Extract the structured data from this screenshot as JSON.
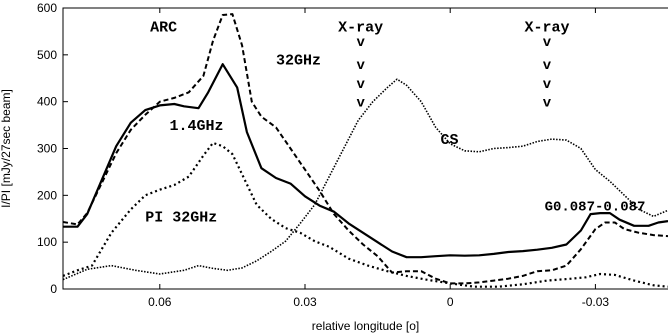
{
  "chart_data": {
    "type": "line",
    "xlabel": "relative longitude [o]",
    "ylabel": "I/PI [mJy/27sec beam]",
    "xlim": [
      0.08,
      -0.045
    ],
    "ylim": [
      0,
      600
    ],
    "xticks": [
      {
        "value": 0.06,
        "label": "0.06"
      },
      {
        "value": 0.03,
        "label": "0.03"
      },
      {
        "value": 0.0,
        "label": "0"
      },
      {
        "value": -0.03,
        "label": "-0.03"
      }
    ],
    "yticks": [
      {
        "value": 0,
        "label": "0"
      },
      {
        "value": 100,
        "label": "100"
      },
      {
        "value": 200,
        "label": "200"
      },
      {
        "value": 300,
        "label": "300"
      },
      {
        "value": 400,
        "label": "400"
      },
      {
        "value": 500,
        "label": "500"
      },
      {
        "value": 600,
        "label": "600"
      }
    ],
    "grid": false,
    "series": [
      {
        "name": "1.4GHz",
        "style": "solid",
        "points": [
          [
            0.08,
            133
          ],
          [
            0.077,
            133
          ],
          [
            0.075,
            160
          ],
          [
            0.069,
            305
          ],
          [
            0.066,
            355
          ],
          [
            0.063,
            382
          ],
          [
            0.06,
            392
          ],
          [
            0.057,
            395
          ],
          [
            0.055,
            390
          ],
          [
            0.052,
            386
          ],
          [
            0.05,
            420
          ],
          [
            0.047,
            480
          ],
          [
            0.044,
            430
          ],
          [
            0.042,
            335
          ],
          [
            0.039,
            258
          ],
          [
            0.036,
            237
          ],
          [
            0.033,
            225
          ],
          [
            0.03,
            198
          ],
          [
            0.027,
            178
          ],
          [
            0.024,
            165
          ],
          [
            0.021,
            140
          ],
          [
            0.018,
            120
          ],
          [
            0.015,
            100
          ],
          [
            0.012,
            80
          ],
          [
            0.009,
            68
          ],
          [
            0.006,
            68
          ],
          [
            0.003,
            70
          ],
          [
            0.0,
            72
          ],
          [
            -0.003,
            71
          ],
          [
            -0.006,
            72
          ],
          [
            -0.009,
            75
          ],
          [
            -0.012,
            79
          ],
          [
            -0.015,
            81
          ],
          [
            -0.018,
            84
          ],
          [
            -0.021,
            88
          ],
          [
            -0.024,
            95
          ],
          [
            -0.027,
            125
          ],
          [
            -0.029,
            160
          ],
          [
            -0.031,
            162
          ],
          [
            -0.033,
            162
          ],
          [
            -0.035,
            148
          ],
          [
            -0.038,
            135
          ],
          [
            -0.041,
            135
          ],
          [
            -0.043,
            142
          ],
          [
            -0.045,
            145
          ]
        ]
      },
      {
        "name": "32GHz",
        "style": "dashed",
        "points": [
          [
            0.08,
            143
          ],
          [
            0.077,
            138
          ],
          [
            0.075,
            162
          ],
          [
            0.069,
            290
          ],
          [
            0.066,
            340
          ],
          [
            0.063,
            372
          ],
          [
            0.06,
            400
          ],
          [
            0.057,
            408
          ],
          [
            0.054,
            420
          ],
          [
            0.051,
            455
          ],
          [
            0.049,
            530
          ],
          [
            0.047,
            585
          ],
          [
            0.045,
            587
          ],
          [
            0.043,
            520
          ],
          [
            0.041,
            400
          ],
          [
            0.039,
            368
          ],
          [
            0.036,
            345
          ],
          [
            0.033,
            300
          ],
          [
            0.03,
            255
          ],
          [
            0.027,
            210
          ],
          [
            0.024,
            160
          ],
          [
            0.021,
            125
          ],
          [
            0.018,
            95
          ],
          [
            0.015,
            70
          ],
          [
            0.012,
            35
          ],
          [
            0.009,
            38
          ],
          [
            0.006,
            38
          ],
          [
            0.003,
            22
          ],
          [
            0.0,
            12
          ],
          [
            -0.003,
            12
          ],
          [
            -0.006,
            14
          ],
          [
            -0.009,
            18
          ],
          [
            -0.012,
            22
          ],
          [
            -0.015,
            28
          ],
          [
            -0.018,
            38
          ],
          [
            -0.021,
            40
          ],
          [
            -0.024,
            50
          ],
          [
            -0.027,
            85
          ],
          [
            -0.03,
            128
          ],
          [
            -0.032,
            142
          ],
          [
            -0.034,
            142
          ],
          [
            -0.036,
            128
          ],
          [
            -0.039,
            120
          ],
          [
            -0.042,
            115
          ],
          [
            -0.045,
            113
          ]
        ]
      },
      {
        "name": "PI 32GHz",
        "style": "dotted",
        "points": [
          [
            0.08,
            28
          ],
          [
            0.077,
            40
          ],
          [
            0.074,
            50
          ],
          [
            0.07,
            120
          ],
          [
            0.066,
            170
          ],
          [
            0.063,
            200
          ],
          [
            0.06,
            212
          ],
          [
            0.057,
            222
          ],
          [
            0.054,
            240
          ],
          [
            0.051,
            285
          ],
          [
            0.049,
            312
          ],
          [
            0.047,
            305
          ],
          [
            0.045,
            288
          ],
          [
            0.043,
            245
          ],
          [
            0.04,
            180
          ],
          [
            0.037,
            150
          ],
          [
            0.034,
            130
          ],
          [
            0.031,
            120
          ],
          [
            0.028,
            102
          ],
          [
            0.025,
            90
          ],
          [
            0.021,
            65
          ],
          [
            0.017,
            50
          ],
          [
            0.013,
            38
          ],
          [
            0.009,
            28
          ],
          [
            0.005,
            20
          ],
          [
            0.0,
            12
          ],
          [
            -0.005,
            5
          ],
          [
            -0.01,
            5
          ],
          [
            -0.015,
            10
          ],
          [
            -0.02,
            18
          ],
          [
            -0.025,
            22
          ],
          [
            -0.028,
            25
          ],
          [
            -0.031,
            32
          ],
          [
            -0.034,
            30
          ],
          [
            -0.038,
            18
          ],
          [
            -0.042,
            8
          ],
          [
            -0.045,
            5
          ]
        ]
      },
      {
        "name": "CS",
        "style": "dense-dotted",
        "points": [
          [
            0.08,
            20
          ],
          [
            0.075,
            42
          ],
          [
            0.07,
            50
          ],
          [
            0.065,
            40
          ],
          [
            0.06,
            32
          ],
          [
            0.055,
            40
          ],
          [
            0.052,
            50
          ],
          [
            0.049,
            44
          ],
          [
            0.046,
            40
          ],
          [
            0.043,
            45
          ],
          [
            0.04,
            60
          ],
          [
            0.037,
            80
          ],
          [
            0.034,
            102
          ],
          [
            0.031,
            140
          ],
          [
            0.028,
            180
          ],
          [
            0.025,
            240
          ],
          [
            0.022,
            300
          ],
          [
            0.019,
            360
          ],
          [
            0.016,
            400
          ],
          [
            0.013,
            430
          ],
          [
            0.011,
            448
          ],
          [
            0.009,
            435
          ],
          [
            0.006,
            400
          ],
          [
            0.003,
            345
          ],
          [
            0.0,
            310
          ],
          [
            -0.003,
            295
          ],
          [
            -0.006,
            293
          ],
          [
            -0.009,
            300
          ],
          [
            -0.012,
            302
          ],
          [
            -0.015,
            305
          ],
          [
            -0.018,
            315
          ],
          [
            -0.021,
            320
          ],
          [
            -0.024,
            318
          ],
          [
            -0.027,
            300
          ],
          [
            -0.03,
            255
          ],
          [
            -0.033,
            230
          ],
          [
            -0.036,
            200
          ],
          [
            -0.039,
            170
          ],
          [
            -0.042,
            155
          ],
          [
            -0.045,
            168
          ]
        ]
      }
    ],
    "annotations": [
      {
        "text": "ARC",
        "x": 0.062,
        "y": 560
      },
      {
        "text": "32GHz",
        "x": 0.036,
        "y": 490
      },
      {
        "text": "1.4GHz",
        "x": 0.058,
        "y": 350
      },
      {
        "text": "PI 32GHz",
        "x": 0.063,
        "y": 155
      },
      {
        "text": "CS",
        "x": 0.002,
        "y": 320
      },
      {
        "text": "G0.087-0.087",
        "x": -0.0195,
        "y": 178
      },
      {
        "text": "X-ray",
        "x": 0.0185,
        "y": 560
      },
      {
        "text": "X-ray",
        "x": -0.02,
        "y": 560
      }
    ],
    "arrow_markers": [
      {
        "x": 0.0185,
        "y": [
          530,
          480,
          440,
          400
        ],
        "glyph": "v"
      },
      {
        "x": -0.02,
        "y": [
          530,
          480,
          440,
          400
        ],
        "glyph": "v"
      }
    ]
  }
}
